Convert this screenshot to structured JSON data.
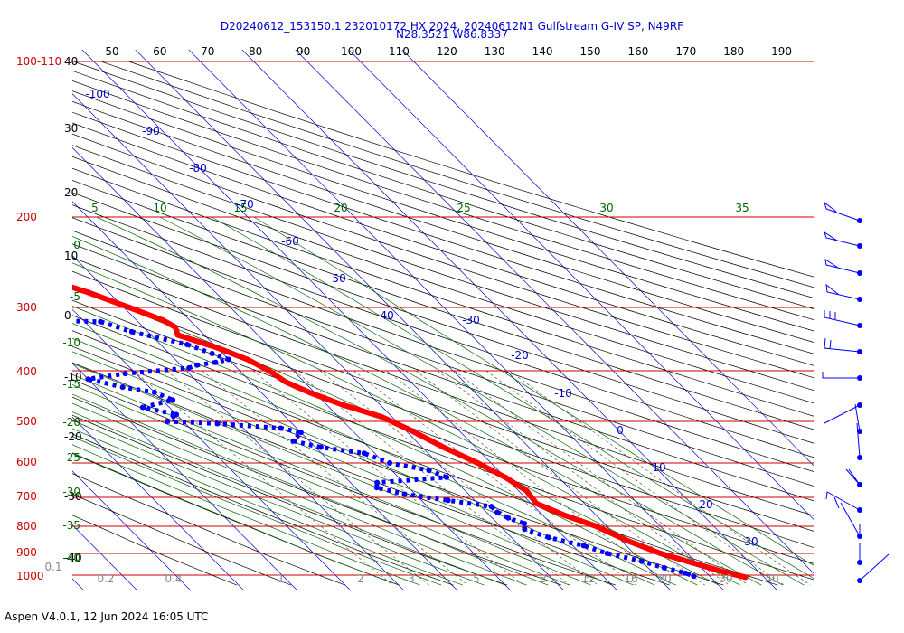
{
  "header": {
    "title_line1": "D20240612_153150.1 232010172 HX 2024, 20240612N1 Gulfstream G-IV SP, N49RF",
    "title_line2": "N28.3521 W86.8337"
  },
  "footer": {
    "text": "Aspen V4.0.1, 12 Jun 2024  16:05 UTC"
  },
  "colors": {
    "isobar": "#cc0000",
    "isotherm": "#0000cc",
    "dry_adiabat": "#000000",
    "moist_adiabat": "#006600",
    "mixing_ratio": "#555555",
    "temperature": "#ff0000",
    "dewpoint": "#0000ff"
  },
  "chart_data": {
    "type": "skew-t",
    "pressure_ticks": [
      "100-110",
      "200",
      "300",
      "400",
      "500",
      "600",
      "700",
      "800",
      "900",
      "1000"
    ],
    "theta_ticks_top": [
      "50",
      "60",
      "70",
      "80",
      "90",
      "100",
      "110",
      "120",
      "130",
      "140",
      "150",
      "160",
      "170",
      "180",
      "190"
    ],
    "altitude_ticks_left": [
      "40",
      "30",
      "20",
      "10",
      "0",
      "-10",
      "-20",
      "-30",
      "-40"
    ],
    "theta_e_ticks": [
      "5",
      "10",
      "15",
      "20",
      "25",
      "30",
      "35"
    ],
    "left_green_ticks": [
      "0",
      "-5",
      "-10",
      "-15",
      "-20",
      "-25",
      "-30",
      "-35",
      "-40"
    ],
    "isotherm_labels": [
      "-100",
      "-90",
      "-80",
      "-70",
      "-60",
      "-50",
      "-40",
      "-30",
      "-20",
      "-10",
      "0",
      "10",
      "20",
      "30"
    ],
    "mixing_ratio_labels": [
      "0.1",
      "0.2",
      "0.4",
      "1",
      "2",
      "3",
      "5",
      "8",
      "12",
      "16",
      "20",
      "30",
      "40"
    ],
    "temperature_profile": [
      {
        "p": 207,
        "t": -57
      },
      {
        "p": 215,
        "t": -55.5
      },
      {
        "p": 230,
        "t": -53.5
      },
      {
        "p": 245,
        "t": -52.5
      },
      {
        "p": 262,
        "t": -50
      },
      {
        "p": 280,
        "t": -44
      },
      {
        "p": 300,
        "t": -39
      },
      {
        "p": 318,
        "t": -35
      },
      {
        "p": 328,
        "t": -34
      },
      {
        "p": 340,
        "t": -35
      },
      {
        "p": 360,
        "t": -30
      },
      {
        "p": 380,
        "t": -26.5
      },
      {
        "p": 400,
        "t": -24.5
      },
      {
        "p": 420,
        "t": -23.5
      },
      {
        "p": 440,
        "t": -21
      },
      {
        "p": 465,
        "t": -17
      },
      {
        "p": 490,
        "t": -12
      },
      {
        "p": 520,
        "t": -9
      },
      {
        "p": 560,
        "t": -6
      },
      {
        "p": 600,
        "t": -2.5
      },
      {
        "p": 640,
        "t": 0
      },
      {
        "p": 680,
        "t": 1.5
      },
      {
        "p": 720,
        "t": 1
      },
      {
        "p": 760,
        "t": 4
      },
      {
        "p": 800,
        "t": 8
      },
      {
        "p": 850,
        "t": 11
      },
      {
        "p": 900,
        "t": 15
      },
      {
        "p": 950,
        "t": 20
      },
      {
        "p": 985,
        "t": 23.5
      },
      {
        "p": 1010,
        "t": 26.5
      }
    ],
    "dewpoint_profile": [
      {
        "p": 235,
        "t": -61
      },
      {
        "p": 240,
        "t": -60.5
      },
      {
        "p": 248,
        "t": -59
      },
      {
        "p": 252,
        "t": -56
      },
      {
        "p": 258,
        "t": -63
      },
      {
        "p": 265,
        "t": -78
      },
      {
        "p": 280,
        "t": -92
      },
      {
        "p": 295,
        "t": -95
      },
      {
        "p": 310,
        "t": -91
      },
      {
        "p": 315,
        "t": -75
      },
      {
        "p": 320,
        "t": -47
      },
      {
        "p": 335,
        "t": -43
      },
      {
        "p": 355,
        "t": -35
      },
      {
        "p": 370,
        "t": -32
      },
      {
        "p": 380,
        "t": -30
      },
      {
        "p": 385,
        "t": -33
      },
      {
        "p": 390,
        "t": -37
      },
      {
        "p": 395,
        "t": -39
      },
      {
        "p": 405,
        "t": -52
      },
      {
        "p": 415,
        "t": -60
      },
      {
        "p": 430,
        "t": -55
      },
      {
        "p": 440,
        "t": -50
      },
      {
        "p": 455,
        "t": -48
      },
      {
        "p": 470,
        "t": -55
      },
      {
        "p": 485,
        "t": -50
      },
      {
        "p": 500,
        "t": -53
      },
      {
        "p": 505,
        "t": -44
      },
      {
        "p": 515,
        "t": -33
      },
      {
        "p": 525,
        "t": -30
      },
      {
        "p": 545,
        "t": -33
      },
      {
        "p": 560,
        "t": -29
      },
      {
        "p": 575,
        "t": -22
      },
      {
        "p": 600,
        "t": -19
      },
      {
        "p": 620,
        "t": -13
      },
      {
        "p": 640,
        "t": -11
      },
      {
        "p": 655,
        "t": -25
      },
      {
        "p": 670,
        "t": -26
      },
      {
        "p": 690,
        "t": -22
      },
      {
        "p": 710,
        "t": -15
      },
      {
        "p": 730,
        "t": -8
      },
      {
        "p": 750,
        "t": -8
      },
      {
        "p": 770,
        "t": -7
      },
      {
        "p": 790,
        "t": -5
      },
      {
        "p": 810,
        "t": -6
      },
      {
        "p": 840,
        "t": -3
      },
      {
        "p": 870,
        "t": 2
      },
      {
        "p": 900,
        "t": 5
      },
      {
        "p": 935,
        "t": 10
      },
      {
        "p": 965,
        "t": 13
      },
      {
        "p": 990,
        "t": 16
      },
      {
        "p": 1005,
        "t": 17
      }
    ],
    "grid": true
  }
}
